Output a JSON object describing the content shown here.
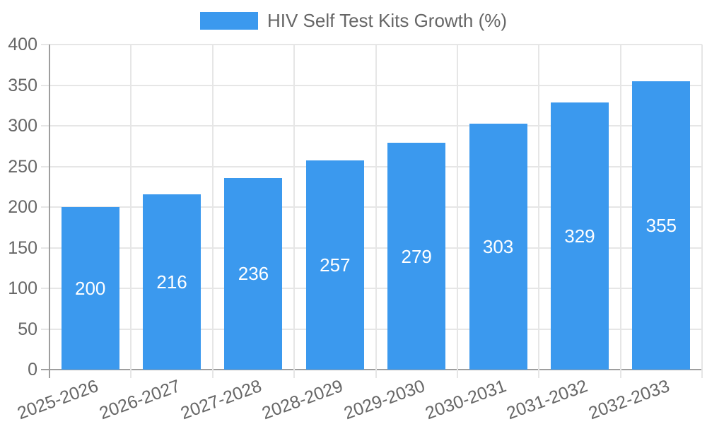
{
  "chart_data": {
    "type": "bar",
    "title": "HIV Self Test Kits Growth (%)",
    "legend": {
      "position": "top",
      "label": "HIV Self Test Kits Growth (%)"
    },
    "categories": [
      "2025-2026",
      "2026-2027",
      "2027-2028",
      "2028-2029",
      "2029-2030",
      "2030-2031",
      "2031-2032",
      "2032-2033"
    ],
    "values": [
      200,
      216,
      236,
      257,
      279,
      303,
      329,
      355
    ],
    "value_labels": [
      "200",
      "216",
      "236",
      "257",
      "279",
      "303",
      "329",
      "355"
    ],
    "xlabel": "",
    "ylabel": "",
    "ylim": [
      0,
      400
    ],
    "ytick_step": 50,
    "yticks": [
      "0",
      "50",
      "100",
      "150",
      "200",
      "250",
      "300",
      "350",
      "400"
    ],
    "grid": true,
    "x_label_rotation_deg": -20,
    "colors": {
      "bar": "#3b99ee",
      "value_label": "#ffffff",
      "axis_text": "#666666",
      "legend_text": "#666666",
      "gridline": "#e6e6e6",
      "axis_line": "#9e9e9e",
      "background": "#ffffff"
    }
  }
}
